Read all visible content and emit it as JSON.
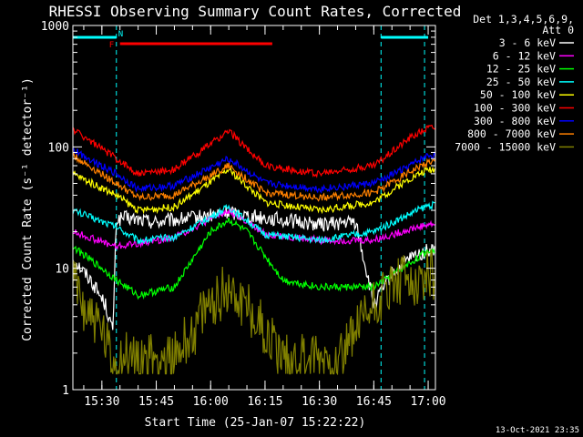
{
  "chart_data": {
    "type": "line",
    "title": "RHESSI Observing Summary Count Rates, Corrected",
    "xlabel": "Start Time (25-Jan-07 15:22:22)",
    "ylabel": "Corrected Count Rate (s⁻¹ detector⁻¹)",
    "yscale": "log",
    "ylim": [
      1,
      1000
    ],
    "xlim": [
      "15:22",
      "17:02"
    ],
    "x_ticks": [
      "15:30",
      "15:45",
      "16:00",
      "16:15",
      "16:30",
      "16:45",
      "17:00"
    ],
    "y_ticks": [
      "1",
      "10",
      "100",
      "1000"
    ],
    "grid": false,
    "legend_position": "top-right",
    "legend_header": [
      "Det 1,3,4,5,6,9,",
      "Att 0"
    ],
    "footer_date": "13-Oct-2021 23:35",
    "bars": [
      {
        "label": "N",
        "start": "15:22",
        "end": "15:34",
        "color": "#00ffff"
      },
      {
        "label": "",
        "start": "16:47",
        "end": "17:00",
        "color": "#00ffff"
      },
      {
        "label": "F",
        "start": "15:35",
        "end": "16:17",
        "color": "#ff0000"
      }
    ],
    "vlines": [
      "15:34",
      "16:47",
      "16:59"
    ],
    "series": [
      {
        "name": "3 - 6 keV",
        "color": "#ffffff",
        "t": [
          "15:22",
          "15:27",
          "15:31",
          "15:33",
          "15:34",
          "15:36",
          "15:45",
          "16:00",
          "16:05",
          "16:15",
          "16:30",
          "16:40",
          "16:45",
          "16:50",
          "16:55",
          "17:00"
        ],
        "v": [
          12,
          8,
          5,
          3,
          25,
          26,
          24,
          27,
          29,
          26,
          23,
          24,
          5,
          9,
          12,
          14
        ]
      },
      {
        "name": "6 - 12 keV",
        "color": "#ff00ff",
        "t": [
          "15:22",
          "15:34",
          "15:45",
          "15:50",
          "16:05",
          "16:15",
          "16:30",
          "16:45",
          "16:55",
          "17:00"
        ],
        "v": [
          20,
          15,
          17,
          18,
          30,
          19,
          17,
          17,
          21,
          23
        ]
      },
      {
        "name": "12 - 25 keV",
        "color": "#00ff00",
        "t": [
          "15:22",
          "15:30",
          "15:34",
          "15:40",
          "15:50",
          "16:00",
          "16:05",
          "16:10",
          "16:20",
          "16:30",
          "16:45",
          "16:55",
          "17:00"
        ],
        "v": [
          15,
          10,
          8,
          6,
          7,
          20,
          25,
          20,
          8,
          7,
          7,
          11,
          14
        ]
      },
      {
        "name": "25 - 50 keV",
        "color": "#00ffff",
        "t": [
          "15:22",
          "15:34",
          "15:40",
          "15:50",
          "16:05",
          "16:15",
          "16:30",
          "16:45",
          "16:55",
          "17:00"
        ],
        "v": [
          30,
          22,
          17,
          18,
          32,
          19,
          17,
          20,
          28,
          33
        ]
      },
      {
        "name": "50 - 100 keV",
        "color": "#ffff00",
        "t": [
          "15:22",
          "15:34",
          "15:40",
          "15:50",
          "16:05",
          "16:15",
          "16:30",
          "16:45",
          "16:55",
          "17:00"
        ],
        "v": [
          60,
          40,
          30,
          32,
          65,
          35,
          30,
          35,
          55,
          65
        ]
      },
      {
        "name": "100 - 300 keV",
        "color": "#ff0000",
        "t": [
          "15:22",
          "15:34",
          "15:40",
          "15:50",
          "16:05",
          "16:15",
          "16:30",
          "16:45",
          "16:55",
          "17:00"
        ],
        "v": [
          140,
          80,
          60,
          65,
          135,
          70,
          60,
          70,
          120,
          145
        ]
      },
      {
        "name": "300 - 800 keV",
        "color": "#0000ff",
        "t": [
          "15:22",
          "15:34",
          "15:40",
          "15:50",
          "16:05",
          "16:15",
          "16:30",
          "16:45",
          "16:55",
          "17:00"
        ],
        "v": [
          95,
          60,
          45,
          48,
          80,
          50,
          45,
          50,
          70,
          85
        ]
      },
      {
        "name": "800 - 7000 keV",
        "color": "#ff8000",
        "t": [
          "15:22",
          "15:34",
          "15:40",
          "15:50",
          "16:05",
          "16:15",
          "16:30",
          "16:45",
          "16:55",
          "17:00"
        ],
        "v": [
          85,
          50,
          38,
          40,
          70,
          42,
          38,
          42,
          62,
          75
        ]
      },
      {
        "name": "7000 - 15000 keV",
        "color": "#808000",
        "t": [
          "15:22",
          "15:25",
          "15:30",
          "15:33",
          "15:34",
          "15:50",
          "15:55",
          "16:00",
          "16:05",
          "16:10",
          "16:15",
          "16:20",
          "16:35",
          "16:40",
          "16:45",
          "16:50",
          "16:55",
          "17:00"
        ],
        "v": [
          8,
          5,
          3,
          1.5,
          1.8,
          1.8,
          3,
          5,
          7,
          5,
          3,
          1.8,
          1.8,
          3,
          5,
          7,
          8,
          9
        ]
      }
    ]
  }
}
